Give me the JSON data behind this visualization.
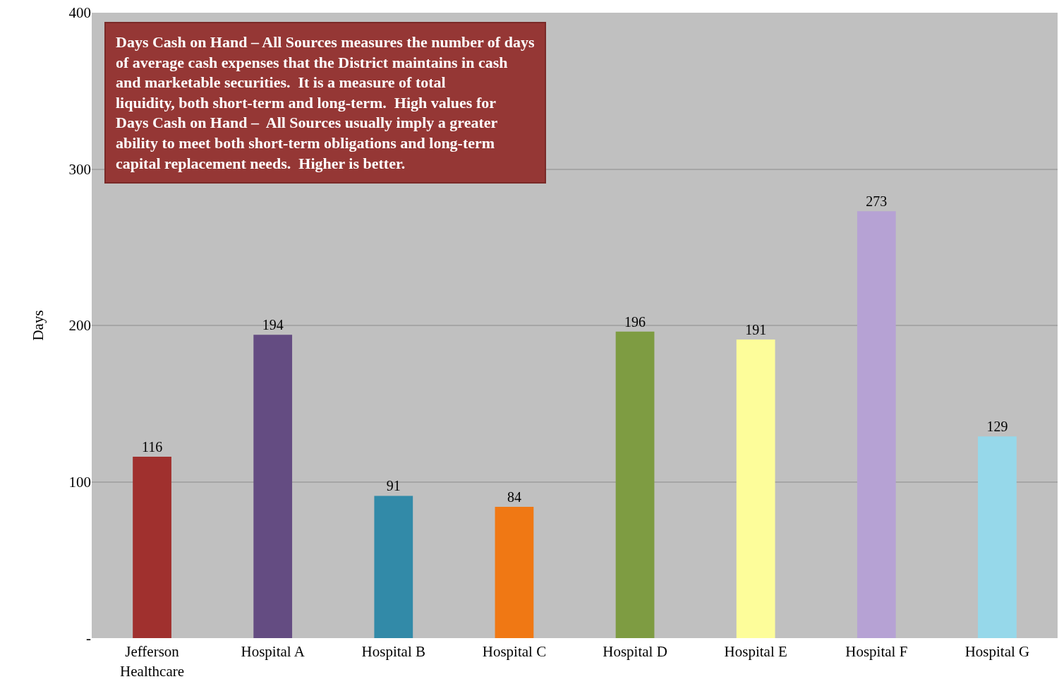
{
  "chart_data": {
    "type": "bar",
    "ylabel": "Days",
    "categories": [
      "Jefferson Healthcare",
      "Hospital A",
      "Hospital B",
      "Hospital C",
      "Hospital D",
      "Hospital E",
      "Hospital F",
      "Hospital G"
    ],
    "values": [
      116,
      194,
      91,
      84,
      196,
      191,
      273,
      129
    ],
    "colors": [
      "#a0302e",
      "#644c82",
      "#328aa8",
      "#f07814",
      "#7e9c42",
      "#fdfd9a",
      "#b6a2d4",
      "#96d8ea"
    ],
    "ylim": [
      0,
      400
    ],
    "yticks": [
      {
        "value": 0,
        "label": "-"
      },
      100,
      200,
      300,
      400
    ],
    "grid": "y",
    "data_labels": true,
    "annotations": [
      "Days Cash on Hand – All Sources measures the number of days of average cash expenses that the District maintains in cash and marketable securities.  It is a measure of total liquidity, both short-term and long-term.  High values for Days Cash on Hand –  All Sources usually imply a greater ability to meet both short-term obligations and long-term capital replacement needs.  Higher is better."
    ]
  }
}
